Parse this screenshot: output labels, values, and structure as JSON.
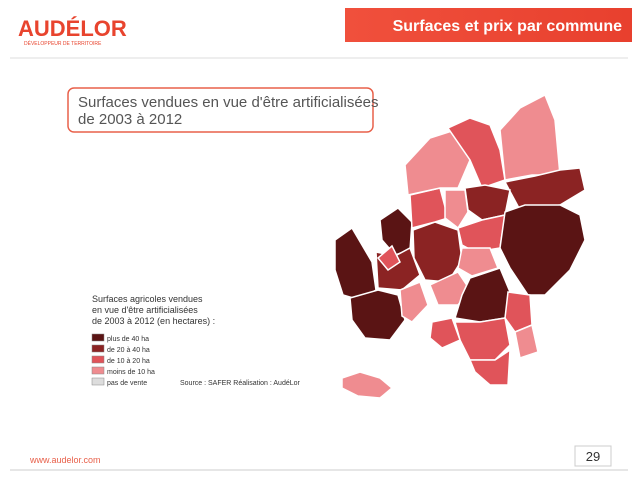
{
  "header": {
    "logo": "AUDÉLOR",
    "tagline": "DÉVELOPPEUR DE TERRITOIRE",
    "title": "Surfaces et prix par commune"
  },
  "map": {
    "title": [
      "Surfaces vendues en vue d'être artificialisées",
      "de 2003 à 2012"
    ]
  },
  "legend": {
    "title": [
      "Surfaces agricoles vendues",
      "en vue d'être artificialisées",
      "de 2003 à 2012 (en hectares) :"
    ],
    "items": [
      "plus de 40 ha",
      "de 20 à 40 ha",
      "de 10 à 20 ha",
      "moins de 10 ha",
      "pas de vente"
    ]
  },
  "source": "Source : SAFER Réalisation : AudéLor",
  "footer": {
    "url": "www.audelor.com",
    "page": "29"
  }
}
